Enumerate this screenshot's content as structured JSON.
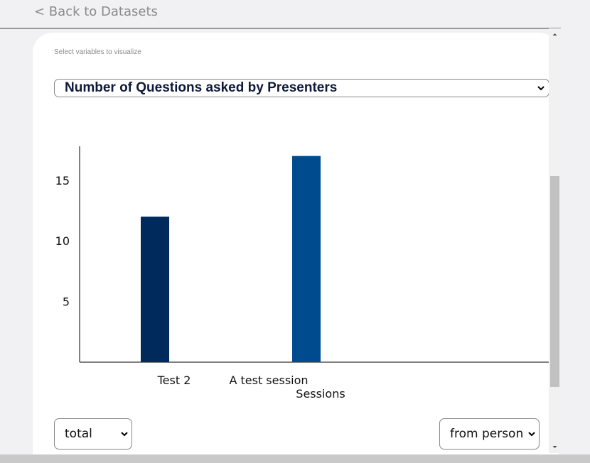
{
  "nav": {
    "back_label": "< Back to Datasets"
  },
  "panel": {
    "subtitle": "Select variables to visualize",
    "variable_selected": "Number of Questions asked by Presenters",
    "aggregate_selected": "total",
    "source_selected": "from person"
  },
  "chart_data": {
    "type": "bar",
    "categories": [
      "Test 2",
      "A test session"
    ],
    "values": [
      12,
      17
    ],
    "xlabel": "Sessions",
    "ylabel": "",
    "yticks": [
      5,
      10,
      15
    ],
    "ylim": [
      0,
      17.8
    ],
    "colors": [
      "#002a5c",
      "#004b8d"
    ],
    "grid": false
  },
  "icons": {
    "select_caret": "chevron-down-icon",
    "scroll_up": "arrow-up-icon",
    "scroll_down": "arrow-down-icon"
  }
}
